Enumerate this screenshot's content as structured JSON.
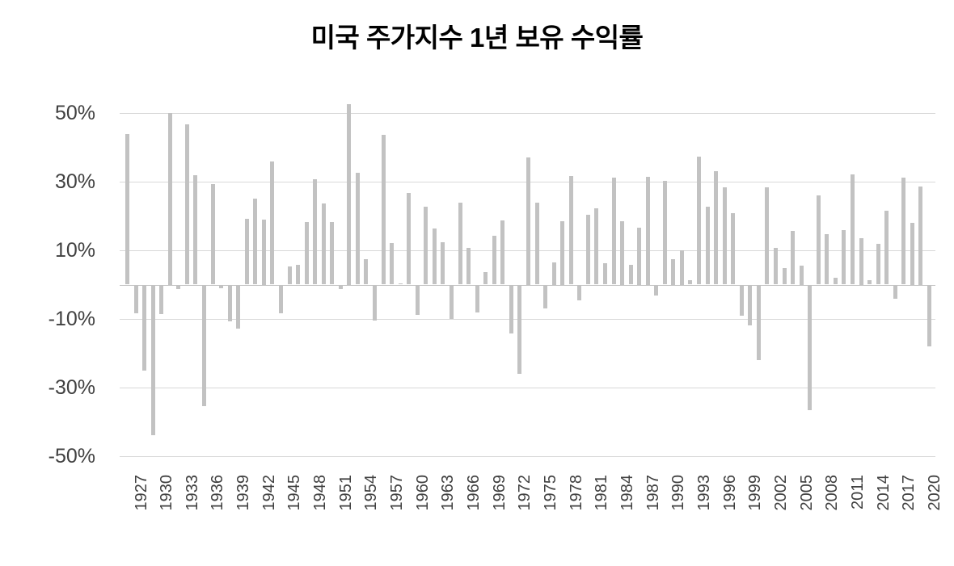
{
  "title": "미국 주가지수 1년 보유 수익률",
  "chart_data": {
    "type": "bar",
    "title": "미국 주가지수 1년 보유 수익률",
    "xlabel": "",
    "ylabel": "",
    "x": [
      1927,
      1928,
      1929,
      1930,
      1931,
      1932,
      1933,
      1934,
      1935,
      1936,
      1937,
      1938,
      1939,
      1940,
      1941,
      1942,
      1943,
      1944,
      1945,
      1946,
      1947,
      1948,
      1949,
      1950,
      1951,
      1952,
      1953,
      1954,
      1955,
      1956,
      1957,
      1958,
      1959,
      1960,
      1961,
      1962,
      1963,
      1964,
      1965,
      1966,
      1967,
      1968,
      1969,
      1970,
      1971,
      1972,
      1973,
      1974,
      1975,
      1976,
      1977,
      1978,
      1979,
      1980,
      1981,
      1982,
      1983,
      1984,
      1985,
      1986,
      1987,
      1988,
      1989,
      1990,
      1991,
      1992,
      1993,
      1994,
      1995,
      1996,
      1997,
      1998,
      1999,
      2000,
      2001,
      2002,
      2003,
      2004,
      2005,
      2006,
      2007,
      2008,
      2009,
      2010,
      2011,
      2012,
      2013,
      2014,
      2015,
      2016,
      2017,
      2018,
      2019,
      2020,
      2021
    ],
    "values": [
      43.8,
      -8.3,
      -25.1,
      -43.8,
      -8.6,
      50.0,
      -1.2,
      46.7,
      31.9,
      -35.3,
      29.3,
      -1.1,
      -10.7,
      -12.8,
      19.2,
      25.1,
      19.0,
      35.8,
      -8.4,
      5.2,
      5.7,
      18.3,
      30.8,
      23.7,
      18.2,
      -1.2,
      52.6,
      32.6,
      7.4,
      -10.5,
      43.7,
      12.1,
      0.3,
      26.6,
      -8.8,
      22.6,
      16.4,
      12.4,
      -10.0,
      23.8,
      10.8,
      -8.2,
      3.6,
      14.2,
      18.8,
      -14.3,
      -25.9,
      37.0,
      23.8,
      -7.0,
      6.5,
      18.5,
      31.7,
      -4.7,
      20.4,
      22.3,
      6.2,
      31.2,
      18.5,
      5.8,
      16.5,
      31.5,
      -3.1,
      30.2,
      7.5,
      10.0,
      1.3,
      37.2,
      22.7,
      33.1,
      28.3,
      20.9,
      -9.0,
      -11.9,
      -22.0,
      28.4,
      10.7,
      4.8,
      15.6,
      5.5,
      -36.6,
      25.9,
      14.8,
      2.1,
      15.9,
      32.2,
      13.5,
      1.4,
      11.8,
      21.6,
      -4.2,
      31.2,
      18.0,
      28.5,
      -18.0
    ],
    "x_tick_labels": [
      "1927",
      "1930",
      "1933",
      "1936",
      "1939",
      "1942",
      "1945",
      "1948",
      "1951",
      "1954",
      "1957",
      "1960",
      "1963",
      "1966",
      "1969",
      "1972",
      "1975",
      "1978",
      "1981",
      "1984",
      "1987",
      "1990",
      "1993",
      "1996",
      "1999",
      "2002",
      "2005",
      "2008",
      "2011",
      "2014",
      "2017",
      "2020"
    ],
    "x_tick_interval": 3,
    "y_ticks": [
      50,
      30,
      10,
      -10,
      -30,
      -50
    ],
    "y_tick_labels": [
      "50%",
      "30%",
      "10%",
      "-10%",
      "-30%",
      "-50%"
    ],
    "ylim": [
      -50,
      50
    ],
    "grid": "horizontal",
    "legend": "none",
    "bar_color": "#c2c2c2",
    "gridline_color": "#d8d8d8",
    "zero_line_color": "#c4c4c4",
    "tick_label_color": "#404040",
    "title_color": "#000000"
  }
}
